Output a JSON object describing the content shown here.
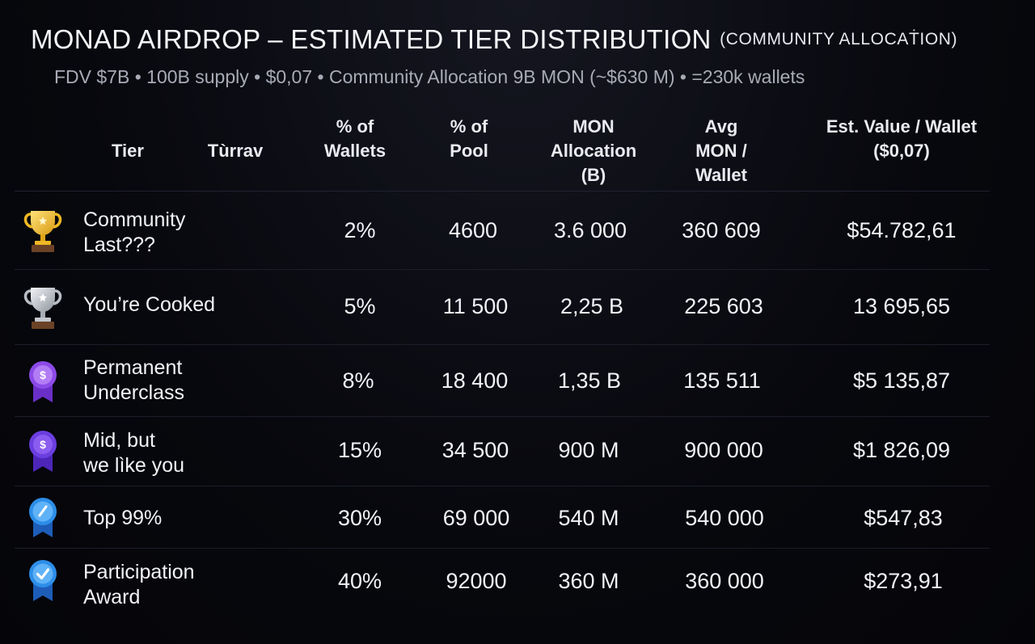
{
  "header": {
    "title": "MONAD AIRDROP – ESTIMATED TIER DISTRIBUTION",
    "title_note": "(COMMUNITY ALLOCAṪION)",
    "subtitle": "FDV $7B • 100B supply • $0,07 • Community Allocation 9B MON (~$630 M) •  =230k wallets"
  },
  "table": {
    "columns": {
      "tier": "Tier",
      "turrav": "Tùrrav",
      "pct_wallets": "% of\nWallets",
      "pct_pool": "% of\nPool",
      "mon_alloc": "MON\nAllocation\n(B)",
      "avg_mon": "Avg\nMON /\nWallet",
      "est_value": "Est. Value / Wallet\n($0,07)"
    },
    "rows": [
      {
        "icon": "gold-trophy-icon",
        "tier": "Community\nLast???",
        "pct_wallets": "2%",
        "pct_pool": "4600",
        "mon_alloc": "3.6 000",
        "avg_mon": "360 609",
        "est_value": "$54.782,61"
      },
      {
        "icon": "silver-trophy-icon",
        "tier": "You’re Cooked",
        "pct_wallets": "5%",
        "pct_pool": "11 500",
        "mon_alloc": "2,25 B",
        "avg_mon": "225 603",
        "est_value": "13  695,65"
      },
      {
        "icon": "purple-dollar-medal-icon",
        "tier": "Permanent\nUnderclass",
        "pct_wallets": "8%",
        "pct_pool": "18 400",
        "mon_alloc": "1,35 B",
        "avg_mon": "135 511",
        "est_value": "$5 135,87"
      },
      {
        "icon": "violet-dollar-medal-icon",
        "tier": "Mid, but\nwe lìke you",
        "pct_wallets": "15%",
        "pct_pool": "34 500",
        "mon_alloc": "900 M",
        "avg_mon": "900 000",
        "est_value": "$1 826,09"
      },
      {
        "icon": "blue-check-badge-icon",
        "tier": "Top 99%",
        "pct_wallets": "30%",
        "pct_pool": "69 000",
        "mon_alloc": "540 M",
        "avg_mon": "540 000",
        "est_value": "$547,83"
      },
      {
        "icon": "blue-checkmark-badge-icon",
        "tier": "Participation\nAward",
        "pct_wallets": "40%",
        "pct_pool": "92000",
        "mon_alloc": "360 M",
        "avg_mon": "360 000",
        "est_value": "$273,91"
      }
    ]
  }
}
